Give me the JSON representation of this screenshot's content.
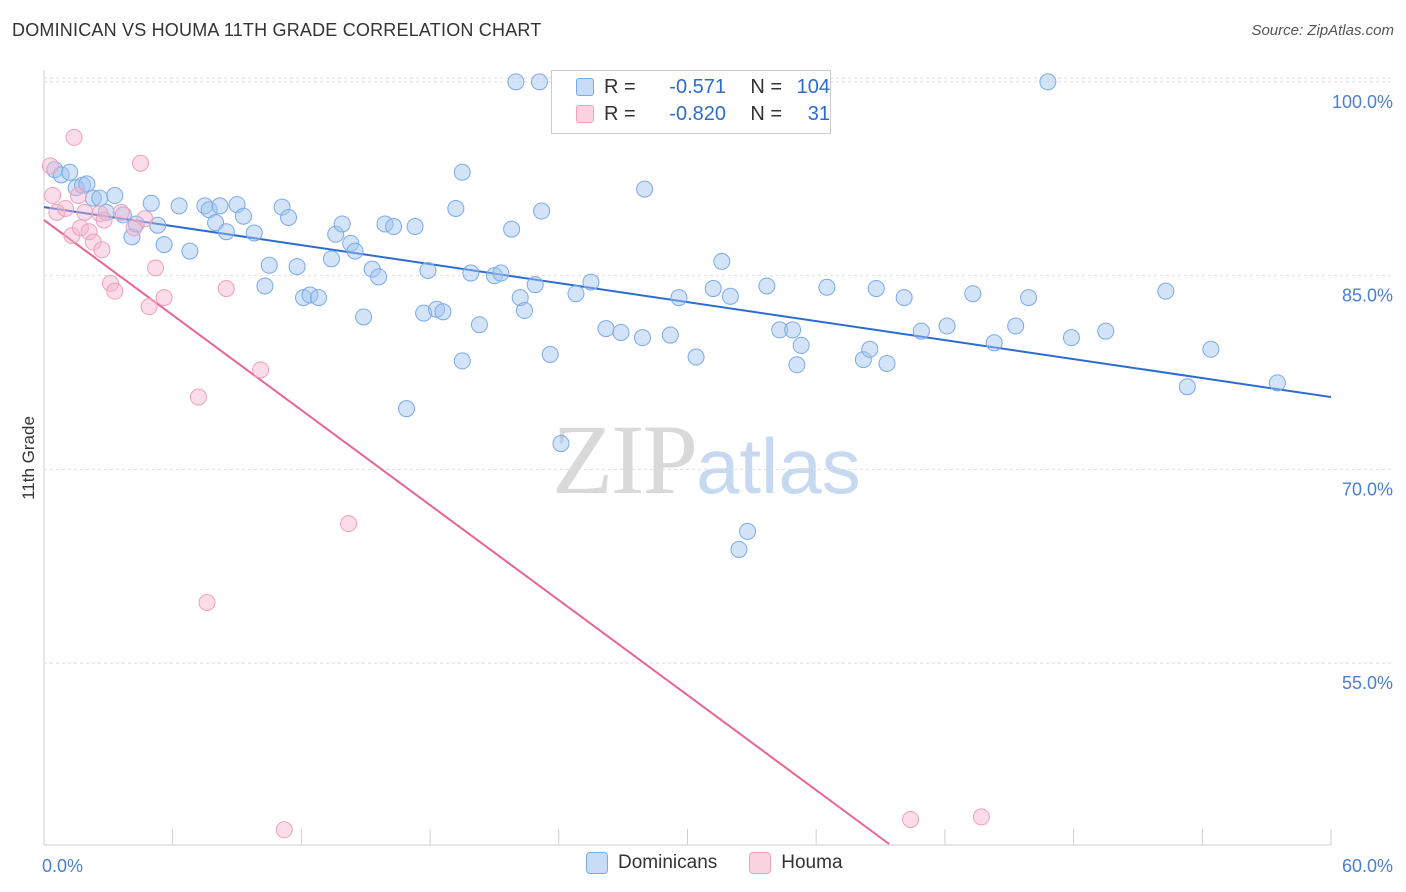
{
  "title": "DOMINICAN VS HOUMA 11TH GRADE CORRELATION CHART",
  "source": "Source: ZipAtlas.com",
  "watermark": {
    "zip": "ZIP",
    "atlas": "atlas"
  },
  "legend": {
    "rows": [
      {
        "r_key": "R =",
        "r_val": "-0.571",
        "n_key": "N =",
        "n_val": "104",
        "color": "#7aaaea"
      },
      {
        "r_key": "R =",
        "r_val": "-0.820",
        "n_key": "N =",
        "n_val": "31",
        "color": "#f0a0bc"
      }
    ]
  },
  "bottom_legend": [
    {
      "label": "Dominicans",
      "color": "#7aaaea"
    },
    {
      "label": "Houma",
      "color": "#f0a0bc"
    }
  ],
  "chart_data": {
    "type": "scatter",
    "title": "DOMINICAN VS HOUMA 11TH GRADE CORRELATION CHART",
    "xlabel": "",
    "ylabel": "11th Grade",
    "xlim": [
      0,
      60
    ],
    "ylim": [
      41,
      101
    ],
    "x_tick_labels": [
      "0.0%",
      "60.0%"
    ],
    "y_ticks": [
      55,
      70,
      85,
      100
    ],
    "y_tick_labels": [
      "55.0%",
      "70.0%",
      "85.0%",
      "100.0%"
    ],
    "grid": true,
    "legend_position": "top-center",
    "series": [
      {
        "name": "Dominicans",
        "color": "#7aaaea",
        "line_color": "#2c6ccf",
        "trend": {
          "x": [
            0,
            60
          ],
          "y": [
            90.3,
            75.6
          ]
        },
        "points": [
          [
            0.5,
            93.2
          ],
          [
            0.8,
            92.8
          ],
          [
            1.2,
            93
          ],
          [
            1.5,
            91.8
          ],
          [
            1.8,
            92
          ],
          [
            2,
            92.1
          ],
          [
            2.3,
            91
          ],
          [
            2.6,
            91
          ],
          [
            2.9,
            89.9
          ],
          [
            3.3,
            91.2
          ],
          [
            3.7,
            89.7
          ],
          [
            4.1,
            88
          ],
          [
            4.3,
            89
          ],
          [
            5,
            90.6
          ],
          [
            5.3,
            88.9
          ],
          [
            5.6,
            87.4
          ],
          [
            6.3,
            90.4
          ],
          [
            6.8,
            86.9
          ],
          [
            7.5,
            90.4
          ],
          [
            7.7,
            90.1
          ],
          [
            8,
            89.1
          ],
          [
            8.2,
            90.4
          ],
          [
            8.5,
            88.4
          ],
          [
            9,
            90.5
          ],
          [
            9.3,
            89.6
          ],
          [
            9.8,
            88.3
          ],
          [
            10.3,
            84.2
          ],
          [
            10.5,
            85.8
          ],
          [
            11.1,
            90.3
          ],
          [
            11.4,
            89.5
          ],
          [
            11.8,
            85.7
          ],
          [
            12.1,
            83.3
          ],
          [
            12.4,
            83.5
          ],
          [
            12.8,
            83.3
          ],
          [
            13.4,
            86.3
          ],
          [
            13.6,
            88.2
          ],
          [
            13.9,
            89
          ],
          [
            14.3,
            87.5
          ],
          [
            14.5,
            86.9
          ],
          [
            14.9,
            81.8
          ],
          [
            15.3,
            85.5
          ],
          [
            15.6,
            84.9
          ],
          [
            15.9,
            89
          ],
          [
            16.3,
            88.8
          ],
          [
            16.9,
            74.7
          ],
          [
            17.3,
            88.8
          ],
          [
            17.7,
            82.1
          ],
          [
            17.9,
            85.4
          ],
          [
            18.3,
            82.4
          ],
          [
            18.6,
            82.2
          ],
          [
            19.2,
            90.2
          ],
          [
            19.5,
            78.4
          ],
          [
            19.5,
            93
          ],
          [
            19.9,
            85.2
          ],
          [
            20.3,
            81.2
          ],
          [
            21,
            85
          ],
          [
            21.3,
            85.2
          ],
          [
            21.8,
            88.6
          ],
          [
            22.2,
            83.3
          ],
          [
            22.4,
            82.3
          ],
          [
            22.9,
            84.3
          ],
          [
            23.2,
            90
          ],
          [
            23.6,
            78.9
          ],
          [
            24.1,
            72
          ],
          [
            24.8,
            83.6
          ],
          [
            25.5,
            84.5
          ],
          [
            26.2,
            80.9
          ],
          [
            26.9,
            80.6
          ],
          [
            27.9,
            80.2
          ],
          [
            28,
            91.7
          ],
          [
            29.2,
            80.4
          ],
          [
            29.6,
            83.3
          ],
          [
            30.4,
            78.7
          ],
          [
            31.2,
            84
          ],
          [
            31.6,
            86.1
          ],
          [
            32,
            83.4
          ],
          [
            32.4,
            63.8
          ],
          [
            32.8,
            65.2
          ],
          [
            33.7,
            84.2
          ],
          [
            34.3,
            80.8
          ],
          [
            35.1,
            78.1
          ],
          [
            34.9,
            80.8
          ],
          [
            35.3,
            79.6
          ],
          [
            36.5,
            84.1
          ],
          [
            38.2,
            78.5
          ],
          [
            38.5,
            79.3
          ],
          [
            38.8,
            84
          ],
          [
            39.3,
            78.2
          ],
          [
            40.1,
            83.3
          ],
          [
            40.9,
            80.7
          ],
          [
            42.1,
            81.1
          ],
          [
            43.3,
            83.6
          ],
          [
            44.3,
            79.8
          ],
          [
            45.3,
            81.1
          ],
          [
            45.9,
            83.3
          ],
          [
            46.8,
            100
          ],
          [
            47.9,
            80.2
          ],
          [
            49.5,
            80.7
          ],
          [
            52.3,
            83.8
          ],
          [
            53.3,
            76.4
          ],
          [
            54.4,
            79.3
          ],
          [
            57.5,
            76.7
          ],
          [
            22,
            100
          ],
          [
            23.1,
            100
          ]
        ]
      },
      {
        "name": "Houma",
        "color": "#f0a0bc",
        "line_color": "#e8668f",
        "trend": {
          "x": [
            0,
            39.4
          ],
          "y": [
            89.3,
            41
          ]
        },
        "points": [
          [
            0.4,
            91.2
          ],
          [
            0.6,
            89.9
          ],
          [
            1,
            90.2
          ],
          [
            1.3,
            88.1
          ],
          [
            1.4,
            95.7
          ],
          [
            1.6,
            91.2
          ],
          [
            1.7,
            88.7
          ],
          [
            1.9,
            89.9
          ],
          [
            2.1,
            88.4
          ],
          [
            2.3,
            87.6
          ],
          [
            2.6,
            89.8
          ],
          [
            2.7,
            87
          ],
          [
            3.1,
            84.4
          ],
          [
            3.3,
            83.8
          ],
          [
            3.6,
            89.9
          ],
          [
            4.2,
            88.7
          ],
          [
            4.5,
            93.7
          ],
          [
            4.7,
            89.4
          ],
          [
            4.9,
            82.6
          ],
          [
            5.2,
            85.6
          ],
          [
            5.6,
            83.3
          ],
          [
            7.2,
            75.6
          ],
          [
            7.6,
            59.7
          ],
          [
            8.5,
            84
          ],
          [
            10.1,
            77.7
          ],
          [
            11.2,
            42.1
          ],
          [
            14.2,
            65.8
          ],
          [
            40.4,
            42.9
          ],
          [
            43.7,
            43.1
          ],
          [
            0.3,
            93.5
          ],
          [
            2.8,
            89.3
          ]
        ]
      }
    ]
  }
}
